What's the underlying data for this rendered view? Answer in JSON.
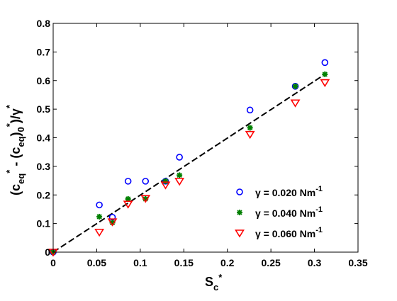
{
  "chart_data": {
    "type": "scatter",
    "xlim": [
      0,
      0.35
    ],
    "ylim": [
      0,
      0.8
    ],
    "x_ticks": [
      0,
      0.05,
      0.1,
      0.15,
      0.2,
      0.25,
      0.3,
      0.35
    ],
    "x_tick_labels": [
      "0",
      "0.05",
      "0.1",
      "0.15",
      "0.2",
      "0.25",
      "0.3",
      "0.35"
    ],
    "y_ticks": [
      0,
      0.1,
      0.2,
      0.3,
      0.4,
      0.5,
      0.6,
      0.7,
      0.8
    ],
    "y_tick_labels": [
      "0",
      "0.1",
      "0.2",
      "0.3",
      "0.4",
      "0.5",
      "0.6",
      "0.7",
      "0.8"
    ],
    "grid": false,
    "legend_position": "bottom-right",
    "xlabel": {
      "main": "S",
      "sub": "c",
      "sup": "*"
    },
    "ylabel": {
      "p1": "(c",
      "sub1": "eq",
      "sup1": "*",
      "p2": " - (c",
      "sub2": "eq",
      "p3": ")",
      "sub3": "0",
      "sup3": "*",
      "p4": ")/γ",
      "sup4": "*"
    },
    "series": [
      {
        "name": "γ = 0.020 Nm",
        "name_sup": "-1",
        "marker": "circle",
        "color": "#0000ff",
        "points": [
          [
            0,
            0
          ],
          [
            0.053,
            0.165
          ],
          [
            0.068,
            0.122
          ],
          [
            0.086,
            0.248
          ],
          [
            0.106,
            0.248
          ],
          [
            0.129,
            0.248
          ],
          [
            0.145,
            0.332
          ],
          [
            0.226,
            0.497
          ],
          [
            0.278,
            0.58
          ],
          [
            0.312,
            0.663
          ]
        ]
      },
      {
        "name": "γ = 0.040 Nm",
        "name_sup": "-1",
        "marker": "star",
        "color": "#008000",
        "points": [
          [
            0,
            0
          ],
          [
            0.053,
            0.124
          ],
          [
            0.068,
            0.103
          ],
          [
            0.086,
            0.186
          ],
          [
            0.106,
            0.186
          ],
          [
            0.129,
            0.248
          ],
          [
            0.145,
            0.269
          ],
          [
            0.226,
            0.435
          ],
          [
            0.278,
            0.58
          ],
          [
            0.312,
            0.622
          ]
        ]
      },
      {
        "name": "γ = 0.060 Nm",
        "name_sup": "-1",
        "marker": "triangle-down",
        "color": "#ff0000",
        "points": [
          [
            0,
            0
          ],
          [
            0.053,
            0.07
          ],
          [
            0.068,
            0.106
          ],
          [
            0.086,
            0.168
          ],
          [
            0.106,
            0.188
          ],
          [
            0.129,
            0.235
          ],
          [
            0.145,
            0.248
          ],
          [
            0.226,
            0.412
          ],
          [
            0.278,
            0.522
          ],
          [
            0.312,
            0.593
          ]
        ]
      }
    ],
    "fit_line": {
      "style": "dashed",
      "color": "#000000",
      "points": [
        [
          0,
          0
        ],
        [
          0.312,
          0.622
        ]
      ]
    }
  }
}
